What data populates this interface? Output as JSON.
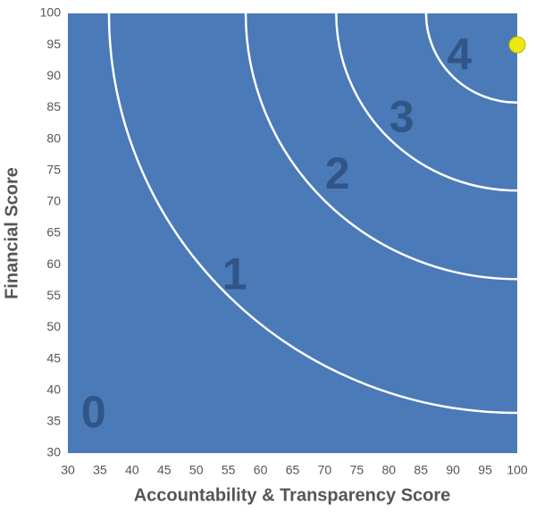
{
  "chart_data": {
    "type": "scatter",
    "x_label": "Accountability & Transparency Score",
    "y_label": "Financial Score",
    "x": [
      100
    ],
    "values": [
      95
    ],
    "color": "#eaea10",
    "xlim": [
      30,
      100
    ],
    "xticks": [
      30,
      35,
      40,
      45,
      50,
      55,
      60,
      65,
      70,
      75,
      80,
      85,
      90,
      95,
      100
    ],
    "ylim": [
      30,
      100
    ],
    "yticks": [
      30,
      35,
      40,
      45,
      50,
      55,
      60,
      65,
      70,
      75,
      80,
      85,
      90,
      95,
      100
    ],
    "grid": true,
    "background": "#4a7ab8",
    "ring_radii": [
      63.6,
      42.3,
      28.2,
      14.2
    ],
    "zone_labels": [
      "0",
      "1",
      "2",
      "3",
      "4"
    ]
  }
}
